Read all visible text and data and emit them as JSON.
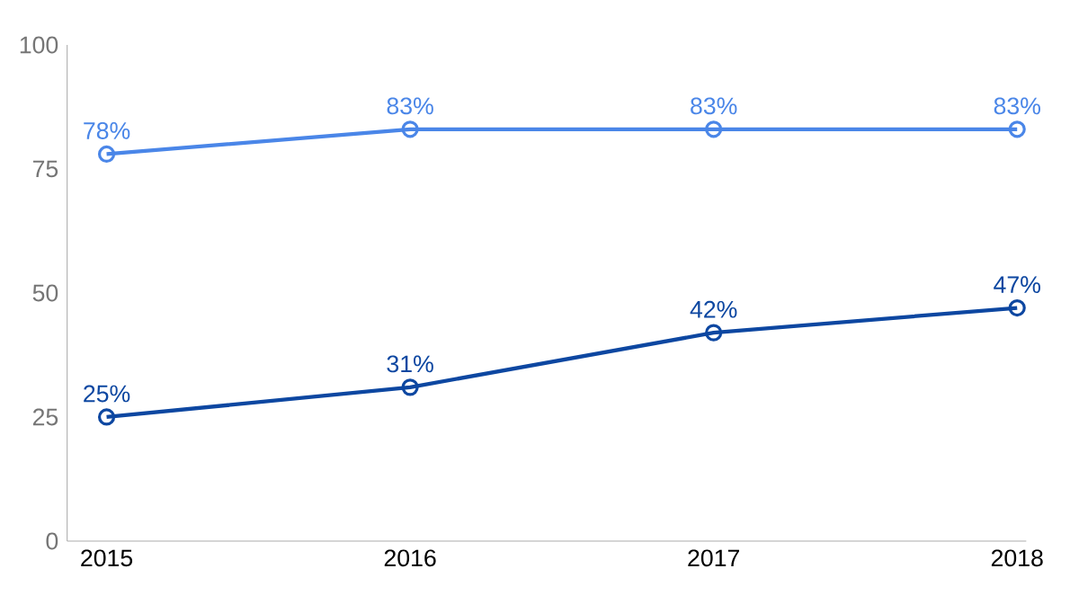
{
  "chart_data": {
    "type": "line",
    "categories": [
      "2015",
      "2016",
      "2017",
      "2018"
    ],
    "series": [
      {
        "color": "#4a86e8",
        "values": [
          78,
          83,
          83,
          83
        ],
        "value_labels": [
          "78%",
          "83%",
          "83%",
          "83%"
        ]
      },
      {
        "color": "#0d47a1",
        "values": [
          25,
          31,
          42,
          47
        ],
        "value_labels": [
          "25%",
          "31%",
          "42%",
          "47%"
        ]
      }
    ],
    "ylim": [
      0,
      100
    ],
    "yticks": [
      0,
      25,
      50,
      75,
      100
    ],
    "grid": false,
    "marker": "circle",
    "line_style": "solid"
  }
}
